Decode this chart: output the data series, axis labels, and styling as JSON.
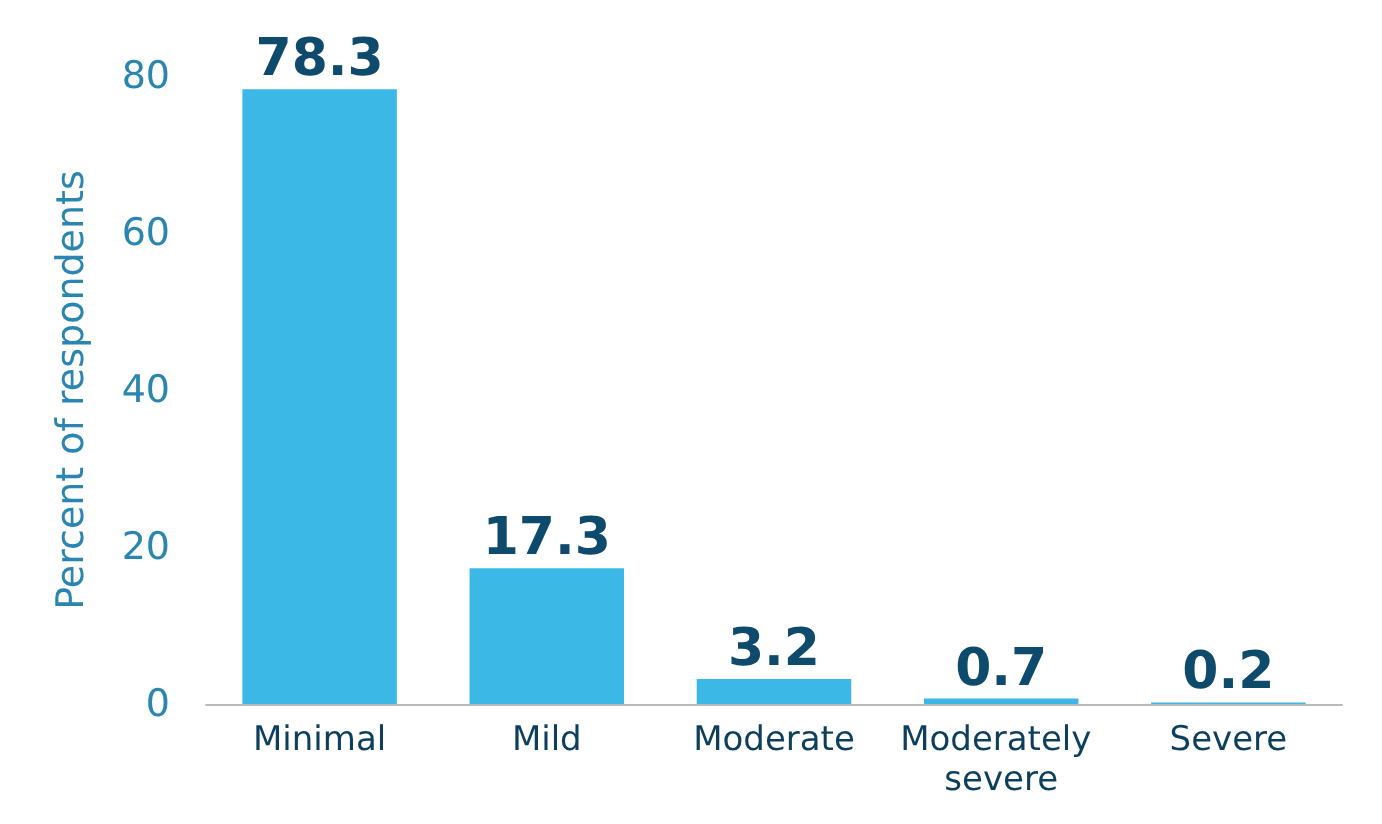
{
  "chart_data": {
    "type": "bar",
    "ylabel": "Percent of respondents",
    "categories": [
      "Minimal",
      "Mild",
      "Moderate",
      "Moderately severe",
      "Severe"
    ],
    "values": [
      78.3,
      17.3,
      3.2,
      0.7,
      0.2
    ],
    "color": "#3bb8e6",
    "ylim": [
      0,
      80
    ],
    "yticks": [
      0,
      20,
      40,
      60,
      80
    ],
    "grid": false,
    "data_labels": true
  }
}
